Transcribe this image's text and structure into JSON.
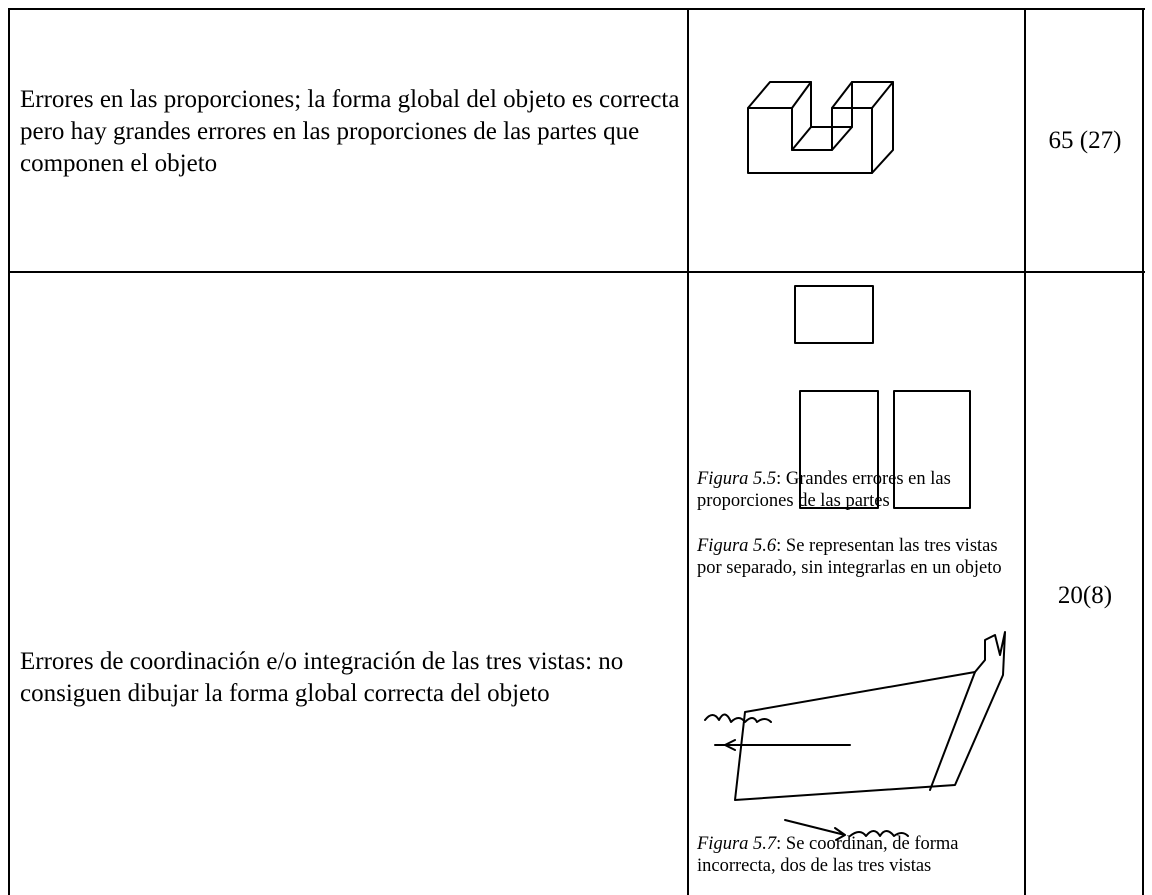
{
  "table": {
    "rows": [
      {
        "description": "Errores en las proporciones; la forma global del objeto es correcta pero hay grandes errores en las proporciones de las partes que componen el objeto",
        "figures": [
          {
            "label": "Figura 5.5",
            "caption": ": Grandes errores en las proporciones de las partes"
          }
        ],
        "count": "65 (27)"
      },
      {
        "description": "Errores de coordinación e/o integración de las tres vistas: no consiguen dibujar la forma global correcta del objeto",
        "figures": [
          {
            "label": "Figura 5.6",
            "caption": ": Se representan las tres vistas por separado, sin integrarlas en un objeto"
          },
          {
            "label": "Figura 5.7",
            "caption": ": Se coordinan, de forma incorrecta, dos de las tres vistas"
          }
        ],
        "count": "20(8)"
      }
    ]
  }
}
